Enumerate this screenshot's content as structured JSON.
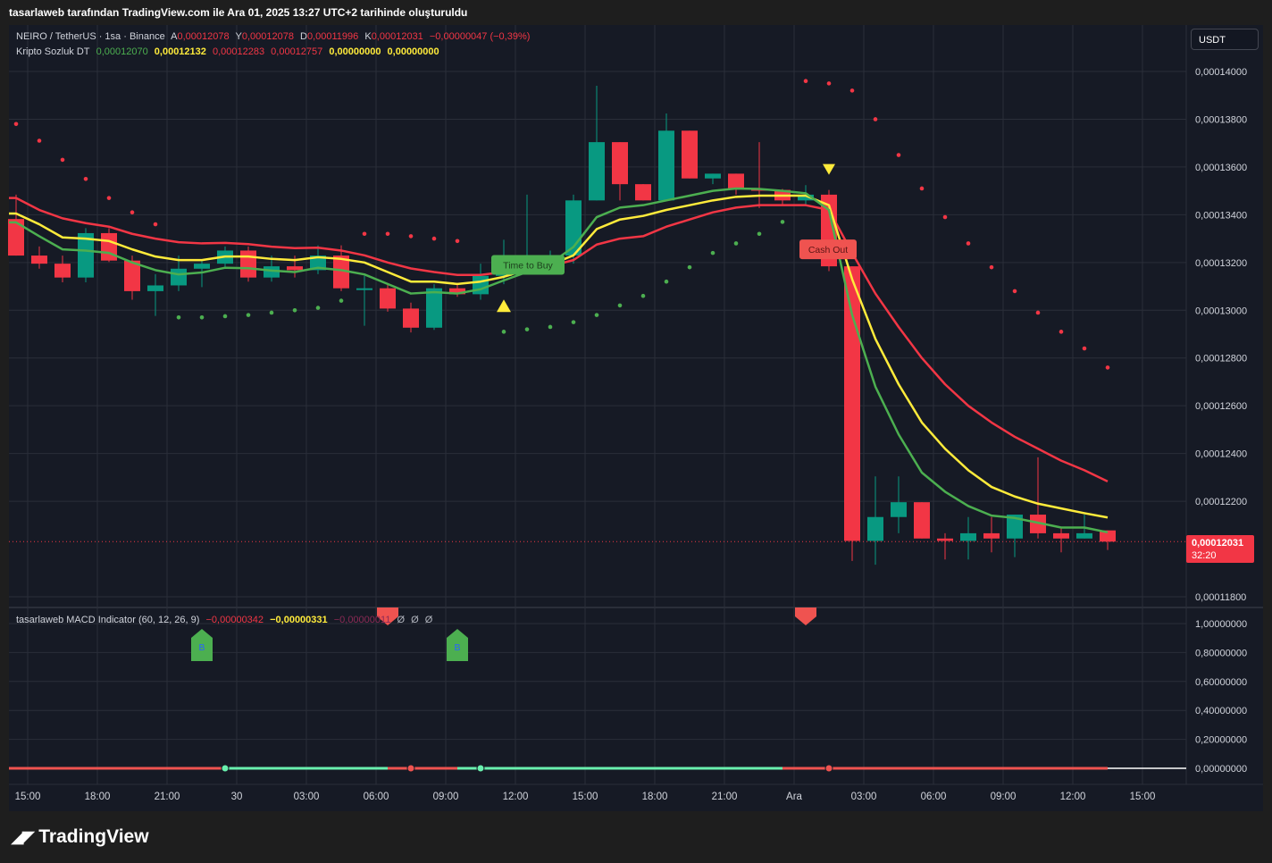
{
  "header": {
    "caption": "tasarlaweb tarafından TradingView.com ile Ara 01, 2025 13:27 UTC+2 tarihinde oluşturuldu"
  },
  "legend": {
    "symbol": "NEIRO / TetherUS · 1sa · Binance",
    "ohlc": [
      {
        "key": "A",
        "value": "0,00012078"
      },
      {
        "key": "Y",
        "value": "0,00012078"
      },
      {
        "key": "D",
        "value": "0,00011996"
      },
      {
        "key": "K",
        "value": "0,00012031"
      }
    ],
    "change": "−0,00000047 (−0,39%)",
    "indicator_name": "Kripto Sozluk DT",
    "indicator_values": [
      "0,00012070",
      "0,00012132",
      "0,00012283",
      "0,00012757",
      "0,00000000",
      "0,00000000"
    ],
    "macd_name": "tasarlaweb MACD Indicator (60, 12, 26, 9)",
    "macd_values": [
      "−0,00000342",
      "−0,00000331",
      "−0,00000011",
      "Ø",
      "Ø",
      "Ø"
    ]
  },
  "currency_button": "USDT",
  "last_price": {
    "value": "0,00012031",
    "countdown": "32:20"
  },
  "colors": {
    "background": "#161a25",
    "up": "#089981",
    "down": "#f23645",
    "ema_fast": "#4caf50",
    "ema_mid": "#ffeb3b",
    "ema_slow": "#f23645",
    "psar_bull": "#4caf50",
    "psar_bear": "#f23645",
    "grid": "#2a2e39"
  },
  "chart_data": [
    {
      "type": "candlestick",
      "title": "NEIRO / TetherUS · 1sa · Binance",
      "ylim": [
        0.0001175,
        0.0001425
      ],
      "y_ticks": [
        "0,00014000",
        "0,00013800",
        "0,00013600",
        "0,00013400",
        "0,00013200",
        "0,00013000",
        "0,00012800",
        "0,00012600",
        "0,00012400",
        "0,00012200",
        "0,00011800"
      ],
      "y_tick_values": [
        0.00014,
        0.000138,
        0.000136,
        0.000134,
        0.000132,
        0.00013,
        0.000128,
        0.000126,
        0.000124,
        0.000122,
        0.000118
      ],
      "x_ticks": [
        {
          "label": "15:00",
          "t": 0.5
        },
        {
          "label": "18:00",
          "t": 3.5
        },
        {
          "label": "21:00",
          "t": 6.5
        },
        {
          "label": "30",
          "t": 9.5
        },
        {
          "label": "03:00",
          "t": 12.5
        },
        {
          "label": "06:00",
          "t": 15.5
        },
        {
          "label": "09:00",
          "t": 18.5
        },
        {
          "label": "12:00",
          "t": 21.5
        },
        {
          "label": "15:00",
          "t": 24.5
        },
        {
          "label": "18:00",
          "t": 27.5
        },
        {
          "label": "21:00",
          "t": 30.5
        },
        {
          "label": "Ara",
          "t": 33.5
        },
        {
          "label": "03:00",
          "t": 36.5
        },
        {
          "label": "06:00",
          "t": 39.5
        },
        {
          "label": "09:00",
          "t": 42.5
        },
        {
          "label": "12:00",
          "t": 45.5
        },
        {
          "label": "15:00",
          "t": 48.5
        }
      ],
      "candles": [
        {
          "o": 0.00013382,
          "h": 0.00013484,
          "l": 0.00013229,
          "c": 0.00013229
        },
        {
          "o": 0.00013229,
          "h": 0.00013267,
          "l": 0.00013174,
          "c": 0.00013195
        },
        {
          "o": 0.00013195,
          "h": 0.00013229,
          "l": 0.00013117,
          "c": 0.00013137
        },
        {
          "o": 0.00013137,
          "h": 0.00013344,
          "l": 0.00013117,
          "c": 0.00013323
        },
        {
          "o": 0.00013323,
          "h": 0.00013344,
          "l": 0.00013202,
          "c": 0.00013208
        },
        {
          "o": 0.00013208,
          "h": 0.00013229,
          "l": 0.00013044,
          "c": 0.0001308
        },
        {
          "o": 0.0001308,
          "h": 0.00013151,
          "l": 0.00012976,
          "c": 0.00013104
        },
        {
          "o": 0.00013104,
          "h": 0.00013229,
          "l": 0.0001308,
          "c": 0.00013174
        },
        {
          "o": 0.00013174,
          "h": 0.00013208,
          "l": 0.00013097,
          "c": 0.00013195
        },
        {
          "o": 0.00013195,
          "h": 0.00013267,
          "l": 0.00013174,
          "c": 0.0001325
        },
        {
          "o": 0.0001325,
          "h": 0.00013267,
          "l": 0.0001312,
          "c": 0.00013137
        },
        {
          "o": 0.00013137,
          "h": 0.00013229,
          "l": 0.0001312,
          "c": 0.00013184
        },
        {
          "o": 0.00013184,
          "h": 0.00013229,
          "l": 0.00013137,
          "c": 0.00013168
        },
        {
          "o": 0.00013168,
          "h": 0.00013272,
          "l": 0.00013151,
          "c": 0.00013229
        },
        {
          "o": 0.00013229,
          "h": 0.00013272,
          "l": 0.0001308,
          "c": 0.00013092
        },
        {
          "o": 0.00013092,
          "h": 0.00013144,
          "l": 0.00012935,
          "c": 0.00013092
        },
        {
          "o": 0.00013092,
          "h": 0.00013109,
          "l": 0.00012994,
          "c": 0.00013007
        },
        {
          "o": 0.00013007,
          "h": 0.00013032,
          "l": 0.00012907,
          "c": 0.00012927
        },
        {
          "o": 0.00012927,
          "h": 0.00013109,
          "l": 0.00012918,
          "c": 0.00013092
        },
        {
          "o": 0.00013092,
          "h": 0.00013109,
          "l": 0.00013056,
          "c": 0.00013067
        },
        {
          "o": 0.00013067,
          "h": 0.00013195,
          "l": 0.00013044,
          "c": 0.00013144
        },
        {
          "o": 0.00013144,
          "h": 0.00013295,
          "l": 0.00013109,
          "c": 0.00013229
        },
        {
          "o": 0.00013229,
          "h": 0.00013484,
          "l": 0.00013151,
          "c": 0.00013229
        },
        {
          "o": 0.00013229,
          "h": 0.0001325,
          "l": 0.00013151,
          "c": 0.00013229
        },
        {
          "o": 0.00013229,
          "h": 0.00013484,
          "l": 0.00013195,
          "c": 0.0001346
        },
        {
          "o": 0.0001346,
          "h": 0.0001394,
          "l": 0.0001346,
          "c": 0.00013704
        },
        {
          "o": 0.00013704,
          "h": 0.00013704,
          "l": 0.0001346,
          "c": 0.00013528
        },
        {
          "o": 0.00013528,
          "h": 0.00013528,
          "l": 0.0001346,
          "c": 0.0001346
        },
        {
          "o": 0.0001346,
          "h": 0.00013824,
          "l": 0.0001346,
          "c": 0.00013752
        },
        {
          "o": 0.00013752,
          "h": 0.00013752,
          "l": 0.00013552,
          "c": 0.00013552
        },
        {
          "o": 0.00013552,
          "h": 0.00013572,
          "l": 0.00013528,
          "c": 0.00013572
        },
        {
          "o": 0.00013572,
          "h": 0.00013572,
          "l": 0.00013484,
          "c": 0.00013508
        },
        {
          "o": 0.00013508,
          "h": 0.00013704,
          "l": 0.00013428,
          "c": 0.00013504
        },
        {
          "o": 0.00013504,
          "h": 0.00013508,
          "l": 0.00013442,
          "c": 0.0001346
        },
        {
          "o": 0.0001346,
          "h": 0.00013524,
          "l": 0.00013436,
          "c": 0.00013484
        },
        {
          "o": 0.00013484,
          "h": 0.00013504,
          "l": 0.00013164,
          "c": 0.00013184
        },
        {
          "o": 0.00013184,
          "h": 0.00013184,
          "l": 0.0001195,
          "c": 0.00012034
        },
        {
          "o": 0.00012034,
          "h": 0.00012304,
          "l": 0.00011934,
          "c": 0.00012134
        },
        {
          "o": 0.00012134,
          "h": 0.00012304,
          "l": 0.00012066,
          "c": 0.00012196
        },
        {
          "o": 0.00012196,
          "h": 0.00012196,
          "l": 0.00012044,
          "c": 0.00012044
        },
        {
          "o": 0.00012044,
          "h": 0.00012066,
          "l": 0.00011956,
          "c": 0.00012034
        },
        {
          "o": 0.00012034,
          "h": 0.00012134,
          "l": 0.00011956,
          "c": 0.00012066
        },
        {
          "o": 0.00012066,
          "h": 0.00012134,
          "l": 0.00011986,
          "c": 0.00012044
        },
        {
          "o": 0.00012044,
          "h": 0.00012144,
          "l": 0.00011966,
          "c": 0.00012144
        },
        {
          "o": 0.00012144,
          "h": 0.00012384,
          "l": 0.00012044,
          "c": 0.00012066
        },
        {
          "o": 0.00012066,
          "h": 0.00012088,
          "l": 0.00011986,
          "c": 0.00012044
        },
        {
          "o": 0.00012044,
          "h": 0.00012144,
          "l": 0.00012044,
          "c": 0.00012066
        },
        {
          "o": 0.00012078,
          "h": 0.00012078,
          "l": 0.00011996,
          "c": 0.00012031
        }
      ],
      "ema_fast": [
        0.00013368,
        0.0001331,
        0.00013255,
        0.0001325,
        0.0001324,
        0.000132,
        0.00013168,
        0.0001315,
        0.00013158,
        0.00013178,
        0.00013176,
        0.00013166,
        0.0001316,
        0.00013178,
        0.00013168,
        0.0001315,
        0.0001311,
        0.0001307,
        0.00013076,
        0.0001307,
        0.00013088,
        0.00013125,
        0.0001316,
        0.00013195,
        0.00013265,
        0.0001339,
        0.0001343,
        0.0001344,
        0.0001346,
        0.0001348,
        0.000135,
        0.0001351,
        0.00013508,
        0.000135,
        0.0001349,
        0.0001342,
        0.0001298,
        0.0001268,
        0.0001248,
        0.0001232,
        0.0001224,
        0.0001218,
        0.0001214,
        0.0001213,
        0.0001211,
        0.0001209,
        0.0001209,
        0.0001207
      ],
      "ema_mid": [
        0.00013405,
        0.0001336,
        0.00013305,
        0.000133,
        0.0001329,
        0.00013255,
        0.00013225,
        0.0001321,
        0.0001321,
        0.00013225,
        0.00013225,
        0.00013215,
        0.0001321,
        0.00013222,
        0.00013215,
        0.000132,
        0.0001316,
        0.0001312,
        0.0001312,
        0.0001311,
        0.0001312,
        0.0001314,
        0.0001317,
        0.0001319,
        0.0001323,
        0.0001334,
        0.0001338,
        0.00013395,
        0.0001342,
        0.0001344,
        0.0001346,
        0.00013475,
        0.0001348,
        0.0001348,
        0.0001348,
        0.0001344,
        0.0001313,
        0.0001288,
        0.0001269,
        0.0001253,
        0.0001242,
        0.0001233,
        0.0001226,
        0.0001222,
        0.0001219,
        0.0001217,
        0.0001215,
        0.00012132
      ],
      "ema_slow": [
        0.0001347,
        0.0001342,
        0.00013385,
        0.00013365,
        0.0001335,
        0.0001332,
        0.000133,
        0.00013285,
        0.0001328,
        0.00013282,
        0.00013277,
        0.00013266,
        0.0001326,
        0.00013262,
        0.0001325,
        0.0001323,
        0.000132,
        0.00013175,
        0.0001316,
        0.00013148,
        0.00013148,
        0.0001316,
        0.00013175,
        0.00013185,
        0.0001321,
        0.00013275,
        0.000133,
        0.0001331,
        0.0001335,
        0.0001338,
        0.0001341,
        0.0001343,
        0.0001344,
        0.0001344,
        0.0001344,
        0.0001342,
        0.0001324,
        0.0001307,
        0.0001293,
        0.000128,
        0.0001269,
        0.000126,
        0.0001253,
        0.0001247,
        0.0001242,
        0.0001237,
        0.0001233,
        0.00012283
      ],
      "psar": [
        {
          "i": 0,
          "v": 0.0001378,
          "side": "bear"
        },
        {
          "i": 1,
          "v": 0.0001371,
          "side": "bear"
        },
        {
          "i": 2,
          "v": 0.0001363,
          "side": "bear"
        },
        {
          "i": 3,
          "v": 0.0001355,
          "side": "bear"
        },
        {
          "i": 4,
          "v": 0.0001347,
          "side": "bear"
        },
        {
          "i": 5,
          "v": 0.0001341,
          "side": "bear"
        },
        {
          "i": 6,
          "v": 0.0001336,
          "side": "bear"
        },
        {
          "i": 7,
          "v": 0.0001297,
          "side": "bull"
        },
        {
          "i": 8,
          "v": 0.0001297,
          "side": "bull"
        },
        {
          "i": 9,
          "v": 0.00012975,
          "side": "bull"
        },
        {
          "i": 10,
          "v": 0.0001298,
          "side": "bull"
        },
        {
          "i": 11,
          "v": 0.0001299,
          "side": "bull"
        },
        {
          "i": 12,
          "v": 0.00013,
          "side": "bull"
        },
        {
          "i": 13,
          "v": 0.0001301,
          "side": "bull"
        },
        {
          "i": 14,
          "v": 0.0001304,
          "side": "bull"
        },
        {
          "i": 15,
          "v": 0.0001332,
          "side": "bear"
        },
        {
          "i": 16,
          "v": 0.0001332,
          "side": "bear"
        },
        {
          "i": 17,
          "v": 0.0001331,
          "side": "bear"
        },
        {
          "i": 18,
          "v": 0.000133,
          "side": "bear"
        },
        {
          "i": 19,
          "v": 0.0001329,
          "side": "bear"
        },
        {
          "i": 21,
          "v": 0.0001291,
          "side": "bull"
        },
        {
          "i": 22,
          "v": 0.0001292,
          "side": "bull"
        },
        {
          "i": 23,
          "v": 0.0001293,
          "side": "bull"
        },
        {
          "i": 24,
          "v": 0.0001295,
          "side": "bull"
        },
        {
          "i": 25,
          "v": 0.0001298,
          "side": "bull"
        },
        {
          "i": 26,
          "v": 0.0001302,
          "side": "bull"
        },
        {
          "i": 27,
          "v": 0.0001306,
          "side": "bull"
        },
        {
          "i": 28,
          "v": 0.0001312,
          "side": "bull"
        },
        {
          "i": 29,
          "v": 0.0001318,
          "side": "bull"
        },
        {
          "i": 30,
          "v": 0.0001324,
          "side": "bull"
        },
        {
          "i": 31,
          "v": 0.0001328,
          "side": "bull"
        },
        {
          "i": 32,
          "v": 0.0001332,
          "side": "bull"
        },
        {
          "i": 33,
          "v": 0.0001337,
          "side": "bull"
        },
        {
          "i": 34,
          "v": 0.0001396,
          "side": "bear"
        },
        {
          "i": 35,
          "v": 0.0001395,
          "side": "bear"
        },
        {
          "i": 36,
          "v": 0.0001392,
          "side": "bear"
        },
        {
          "i": 37,
          "v": 0.000138,
          "side": "bear"
        },
        {
          "i": 38,
          "v": 0.0001365,
          "side": "bear"
        },
        {
          "i": 39,
          "v": 0.0001351,
          "side": "bear"
        },
        {
          "i": 40,
          "v": 0.0001339,
          "side": "bear"
        },
        {
          "i": 41,
          "v": 0.0001328,
          "side": "bear"
        },
        {
          "i": 42,
          "v": 0.0001318,
          "side": "bear"
        },
        {
          "i": 43,
          "v": 0.0001308,
          "side": "bear"
        },
        {
          "i": 44,
          "v": 0.0001299,
          "side": "bear"
        },
        {
          "i": 45,
          "v": 0.0001291,
          "side": "bear"
        },
        {
          "i": 46,
          "v": 0.0001284,
          "side": "bear"
        },
        {
          "i": 47,
          "v": 0.0001276,
          "side": "bear"
        }
      ],
      "signals": [
        {
          "kind": "buy_label",
          "i": 22,
          "text": "Time to Buy",
          "v": 0.0001319
        },
        {
          "kind": "buy_triangle",
          "i": 21,
          "v": 0.00013015
        },
        {
          "kind": "sell_triangle",
          "i": 35,
          "v": 0.0001359
        },
        {
          "kind": "sell_label",
          "i": 35,
          "text": "Cash Out",
          "v": 0.00013255
        }
      ]
    },
    {
      "type": "line",
      "title": "tasarlaweb MACD Indicator (60, 12, 26, 9)",
      "ylim": [
        -0.05,
        1.05
      ],
      "y_ticks": [
        "1,00000000",
        "0,80000000",
        "0,60000000",
        "0,40000000",
        "0,20000000",
        "0,00000000"
      ],
      "y_tick_values": [
        1.0,
        0.8,
        0.6,
        0.4,
        0.2,
        0.0
      ],
      "signal_line": {
        "value": 0,
        "bull_ranges": [
          [
            9,
            16
          ],
          [
            19,
            33
          ]
        ]
      },
      "markers": [
        {
          "kind": "buy",
          "i": 8,
          "text": "B"
        },
        {
          "kind": "buy",
          "i": 19,
          "text": "B"
        },
        {
          "kind": "sell",
          "i": 16
        },
        {
          "kind": "sell",
          "i": 34
        }
      ]
    }
  ]
}
